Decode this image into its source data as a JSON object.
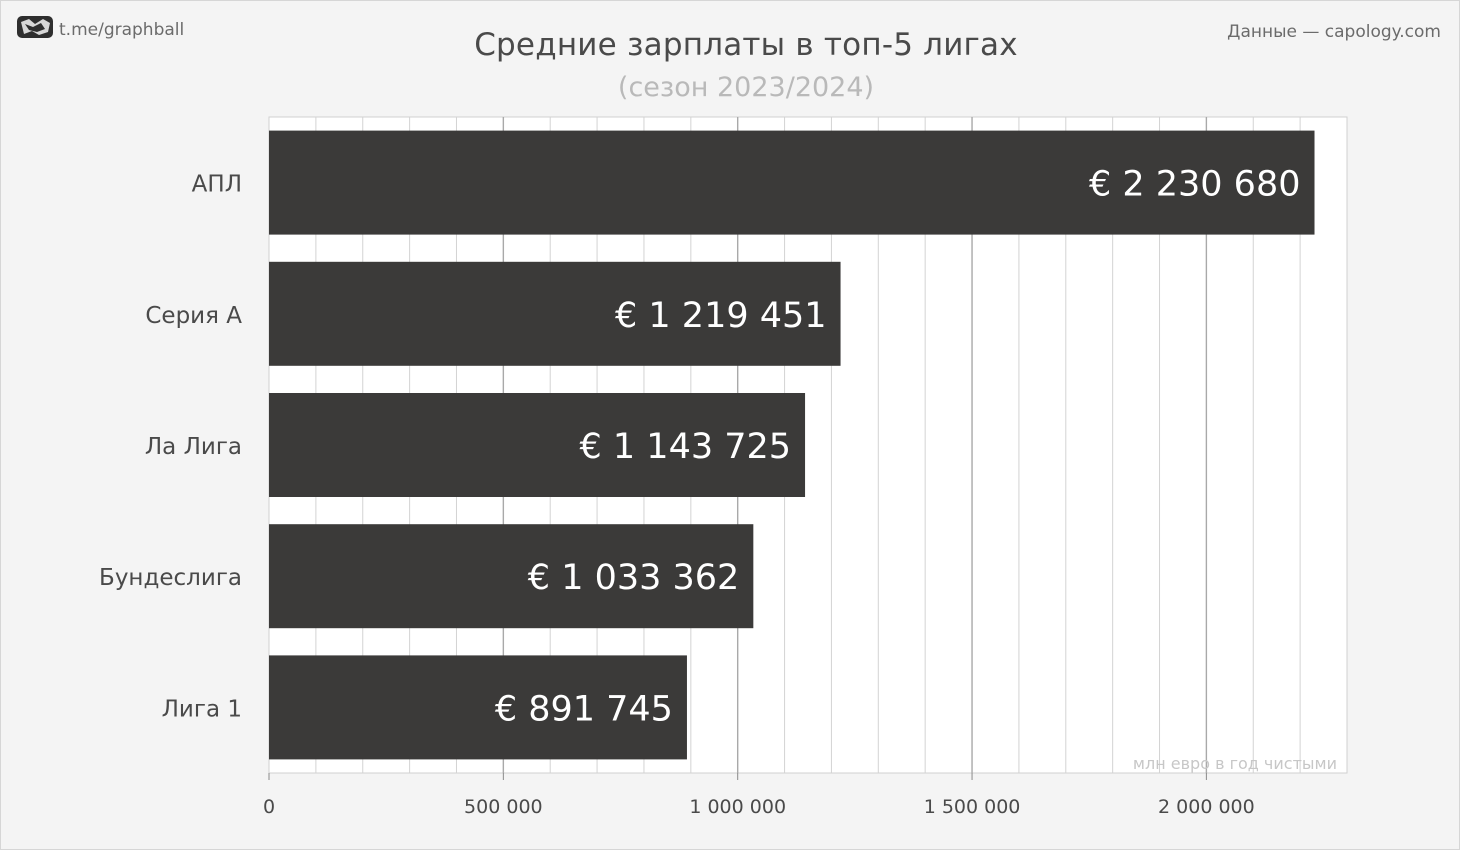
{
  "source_left": "t.me/graphball",
  "source_right": "Данные — capology.com",
  "chart_data": {
    "type": "bar",
    "orientation": "horizontal",
    "title": "Средние зарплаты в топ-5 лигах",
    "subtitle": "(сезон 2023/2024)",
    "categories": [
      "АПЛ",
      "Серия А",
      "Ла Лига",
      "Бундеслига",
      "Лига 1"
    ],
    "values": [
      2230680,
      1219451,
      1143725,
      1033362,
      891745
    ],
    "data_labels": [
      "€ 2 230 680",
      "€ 1 219 451",
      "€ 1 143 725",
      "€ 1 033 362",
      "€ 891 745"
    ],
    "xlim": [
      0,
      2300000
    ],
    "x_ticks": [
      0,
      500000,
      1000000,
      1500000,
      2000000
    ],
    "x_tick_labels": [
      "0",
      "500 000",
      "1 000 000",
      "1 500 000",
      "2 000 000"
    ],
    "minor_grid_step": 100000,
    "annotation": "млн евро в год чистыми",
    "grid": true,
    "colors": {
      "bar": "#3b3a39",
      "bar_label": "#ffffff",
      "grid_major": "#a9a9a9",
      "grid_minor": "#d3d3d3",
      "plot_bg": "#ffffff",
      "text": "#4a4a4a"
    }
  }
}
